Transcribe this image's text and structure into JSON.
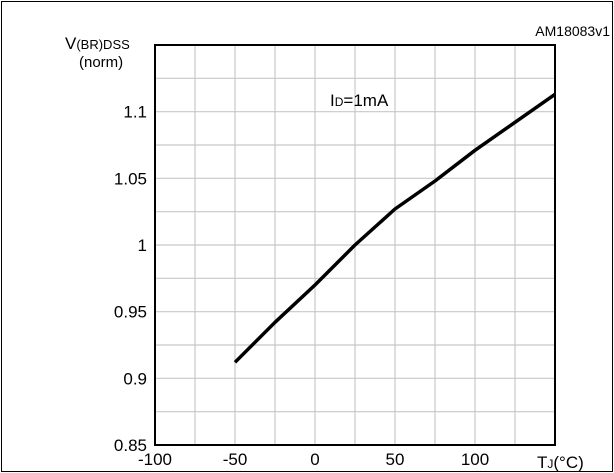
{
  "figure_id": "AM18083v1",
  "chart_data": {
    "type": "line",
    "ylabel_main": "V",
    "ylabel_sub": "(BR)DSS",
    "ylabel_line2": "(norm)",
    "xlabel_main": "T",
    "xlabel_sub": "J",
    "xlabel_unit": "(°C)",
    "annotation_main": "I",
    "annotation_sub": "D",
    "annotation_rest": "=1mA",
    "xlim": [
      -100,
      150
    ],
    "ylim": [
      0.85,
      1.15
    ],
    "x_ticks": [
      "-100",
      "-50",
      "0",
      "50",
      "100"
    ],
    "y_ticks": [
      "0.85",
      "0.9",
      "0.95",
      "1",
      "1.05",
      "1.1"
    ],
    "x_tick_values": [
      -100,
      -50,
      0,
      50,
      100
    ],
    "y_tick_values": [
      0.85,
      0.9,
      0.95,
      1.0,
      1.05,
      1.1
    ],
    "grid": true,
    "series": [
      {
        "x": [
          -50,
          -25,
          0,
          25,
          50,
          75,
          100,
          125,
          150
        ],
        "y": [
          0.912,
          0.942,
          0.97,
          1.0,
          1.027,
          1.048,
          1.071,
          1.092,
          1.113
        ]
      }
    ]
  }
}
